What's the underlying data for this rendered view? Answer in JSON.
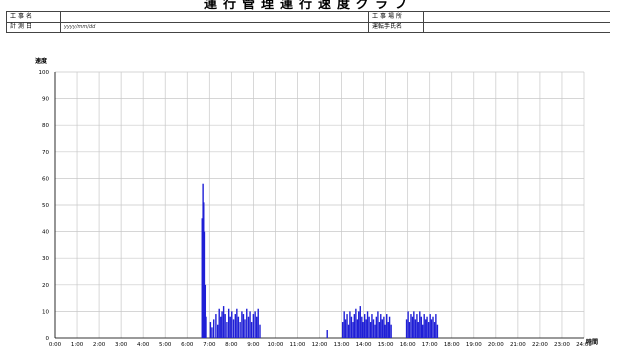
{
  "header": {
    "title": "運行管理運行速度グラフ",
    "row1": {
      "left_label": "工事名",
      "left_value": "",
      "right_label": "工事場所",
      "right_value": ""
    },
    "row2": {
      "left_label": "計測日",
      "left_value": "yyyy/mm/dd",
      "right_label": "運転手氏名",
      "right_value": ""
    }
  },
  "chart_data": {
    "type": "bar",
    "title": "",
    "xlabel": "時間",
    "ylabel": "速度",
    "xlim": [
      0,
      24
    ],
    "ylim": [
      0,
      100
    ],
    "yticks": [
      0,
      10,
      20,
      30,
      40,
      50,
      60,
      70,
      80,
      90,
      100
    ],
    "xtick_labels": [
      "0:00",
      "1:00",
      "2:00",
      "3:00",
      "4:00",
      "5:00",
      "6:00",
      "7:00",
      "8:00",
      "9:00",
      "10:00",
      "11:00",
      "12:00",
      "13:00",
      "14:00",
      "15:00",
      "16:00",
      "17:00",
      "18:00",
      "19:00",
      "20:00",
      "21:00",
      "22:00",
      "23:00",
      "24:00"
    ],
    "grid": true,
    "series_color": "#1f1fd6",
    "series": [
      {
        "x": [
          6.68,
          6.72,
          6.75,
          6.78,
          6.82,
          6.85,
          7.05,
          7.12,
          7.2,
          7.3,
          7.38,
          7.45,
          7.52,
          7.58,
          7.65,
          7.72,
          7.8,
          7.88,
          7.95,
          8.02,
          8.1,
          8.18,
          8.25,
          8.32,
          8.4,
          8.48,
          8.55,
          8.62,
          8.7,
          8.78,
          8.85,
          8.92,
          9.0,
          9.08,
          9.15,
          9.22,
          9.3,
          12.35,
          13.05,
          13.12,
          13.18,
          13.25,
          13.32,
          13.38,
          13.45,
          13.52,
          13.58,
          13.65,
          13.72,
          13.78,
          13.85,
          13.92,
          13.98,
          14.05,
          14.12,
          14.18,
          14.25,
          14.32,
          14.38,
          14.45,
          14.52,
          14.58,
          14.65,
          14.72,
          14.78,
          14.85,
          14.92,
          14.98,
          15.05,
          15.12,
          15.18,
          15.25,
          15.95,
          16.02,
          16.08,
          16.15,
          16.22,
          16.28,
          16.35,
          16.42,
          16.48,
          16.55,
          16.62,
          16.68,
          16.75,
          16.82,
          16.88,
          16.95,
          17.02,
          17.08,
          17.15,
          17.22,
          17.28,
          17.35
        ],
        "values": [
          45,
          58,
          51,
          40,
          20,
          8,
          6,
          4,
          7,
          9,
          5,
          11,
          8,
          10,
          12,
          9,
          6,
          11,
          8,
          10,
          7,
          9,
          11,
          8,
          6,
          10,
          9,
          7,
          11,
          8,
          10,
          6,
          9,
          10,
          8,
          11,
          5,
          3,
          6,
          10,
          7,
          9,
          5,
          10,
          8,
          6,
          9,
          11,
          7,
          10,
          12,
          8,
          6,
          9,
          7,
          10,
          8,
          6,
          9,
          7,
          5,
          8,
          10,
          6,
          9,
          7,
          8,
          5,
          9,
          6,
          8,
          5,
          7,
          10,
          6,
          9,
          8,
          10,
          7,
          9,
          6,
          10,
          8,
          5,
          9,
          7,
          8,
          6,
          9,
          7,
          8,
          6,
          9,
          5
        ]
      }
    ]
  }
}
